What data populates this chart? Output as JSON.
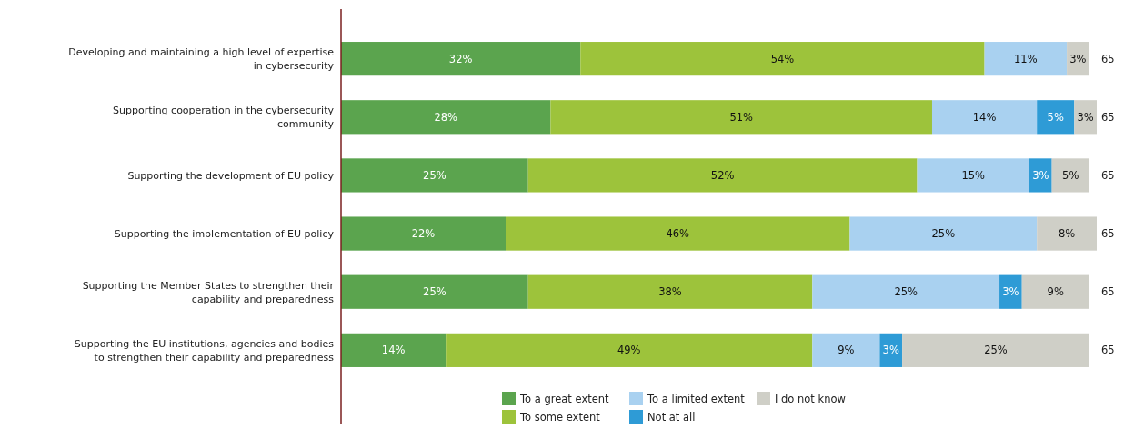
{
  "chart_data": {
    "type": "bar",
    "orientation": "horizontal",
    "stacked": true,
    "xlim": [
      0,
      101
    ],
    "legend": "bottom",
    "categories": [
      "Developing and maintaining a high level of expertise in cybersecurity",
      "Supporting cooperation in the cybersecurity community",
      "Supporting the development of EU policy",
      "Supporting the implementation of EU policy",
      "Supporting the Member States to strengthen their capability and preparedness",
      "Supporting the EU institutions, agencies and bodies to strengthen their capability and preparedness"
    ],
    "series": [
      {
        "name": "To a great extent",
        "color": "#5ba44e",
        "values": [
          32,
          28,
          25,
          22,
          25,
          14
        ],
        "value_labels": [
          "32%",
          "28%",
          "25%",
          "22%",
          "25%",
          "14%"
        ]
      },
      {
        "name": "To some extent",
        "color": "#9dc33b",
        "values": [
          54,
          51,
          52,
          46,
          38,
          49
        ],
        "value_labels": [
          "54%",
          "51%",
          "52%",
          "46%",
          "38%",
          "49%"
        ]
      },
      {
        "name": "To a limited extent",
        "color": "#a9d1f0",
        "values": [
          11,
          14,
          15,
          25,
          25,
          9
        ],
        "value_labels": [
          "11%",
          "14%",
          "15%",
          "25%",
          "25%",
          "9%"
        ]
      },
      {
        "name": "Not at all",
        "color": "#2e9bd6",
        "values": [
          null,
          5,
          3,
          null,
          3,
          3
        ],
        "value_labels": [
          null,
          "5%",
          "3%",
          null,
          "3%",
          "3%"
        ]
      },
      {
        "name": "I do not know",
        "color": "#cfcfc7",
        "values": [
          3,
          3,
          5,
          8,
          9,
          25
        ],
        "value_labels": [
          "3%",
          "3%",
          "5%",
          "8%",
          "9%",
          "25%"
        ]
      }
    ],
    "annotations": [
      "65",
      "65",
      "65",
      "65",
      "65",
      "65"
    ]
  }
}
